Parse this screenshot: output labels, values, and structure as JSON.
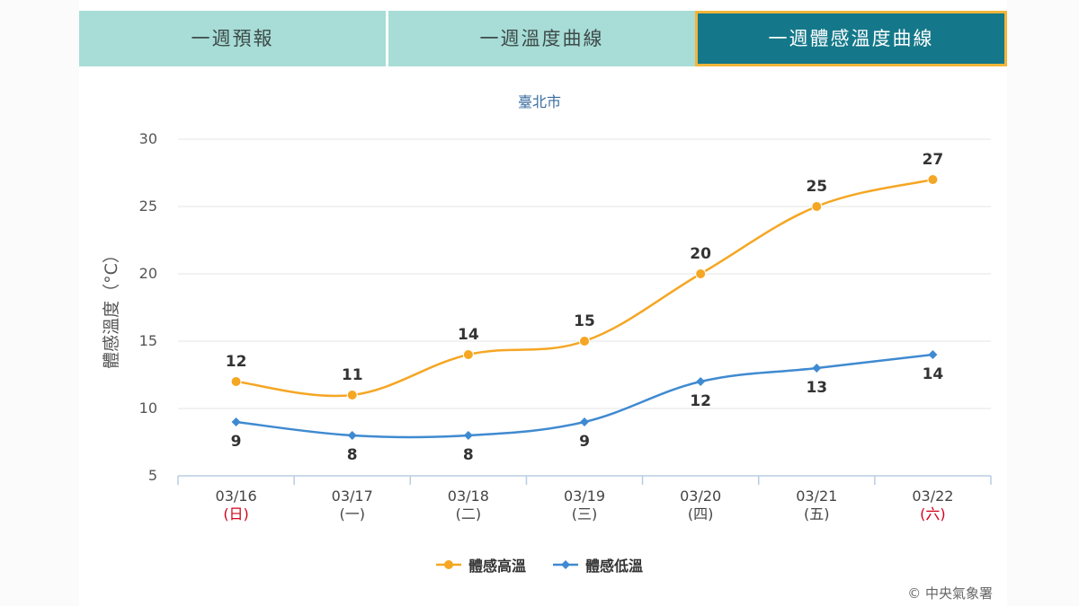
{
  "tabs": [
    {
      "label": "一週預報"
    },
    {
      "label": "一週溫度曲線"
    },
    {
      "label": "一週體感溫度曲線"
    }
  ],
  "colors": {
    "high": "#f5a623",
    "low": "#3f8ad1",
    "weekend_label": "#d0021b",
    "active_tab": "#14788a",
    "tab": "#a7ddd6"
  },
  "credit": "© 中央氣象署",
  "chart_data": {
    "type": "line",
    "title": "臺北市",
    "ylabel": "體感溫度（°C）",
    "ylim": [
      5,
      30
    ],
    "yticks": [
      5,
      10,
      15,
      20,
      25,
      30
    ],
    "categories": [
      "03/16",
      "03/17",
      "03/18",
      "03/19",
      "03/20",
      "03/21",
      "03/22"
    ],
    "weekdays": [
      "(日)",
      "(一)",
      "(二)",
      "(三)",
      "(四)",
      "(五)",
      "(六)"
    ],
    "weekend": [
      true,
      false,
      false,
      false,
      false,
      false,
      true
    ],
    "series": [
      {
        "name": "體感高溫",
        "values": [
          12,
          11,
          14,
          15,
          20,
          25,
          27
        ],
        "marker": "circle"
      },
      {
        "name": "體感低溫",
        "values": [
          9,
          8,
          8,
          9,
          12,
          13,
          14
        ],
        "marker": "diamond"
      }
    ],
    "legend": "bottom-center",
    "grid": true
  }
}
